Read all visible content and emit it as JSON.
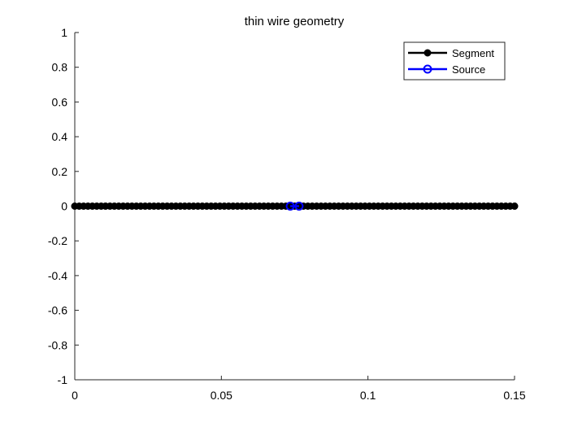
{
  "chart_data": {
    "type": "line",
    "title": "thin wire geometry",
    "xlabel": "",
    "ylabel": "",
    "xlim": [
      0,
      0.15
    ],
    "ylim": [
      -1,
      1
    ],
    "grid": false,
    "legend_position": "top-right",
    "x_ticks": [
      {
        "value": 0,
        "label": "0"
      },
      {
        "value": 0.05,
        "label": "0.05"
      },
      {
        "value": 0.1,
        "label": "0.1"
      },
      {
        "value": 0.15,
        "label": "0.15"
      }
    ],
    "y_ticks": [
      {
        "value": 1,
        "label": "1"
      },
      {
        "value": 0.8,
        "label": "0.8"
      },
      {
        "value": 0.6,
        "label": "0.6"
      },
      {
        "value": 0.4,
        "label": "0.4"
      },
      {
        "value": 0.2,
        "label": "0.2"
      },
      {
        "value": 0,
        "label": "0"
      },
      {
        "value": -0.2,
        "label": "-0.2"
      },
      {
        "value": -0.4,
        "label": "-0.4"
      },
      {
        "value": -0.6,
        "label": "-0.6"
      },
      {
        "value": -0.8,
        "label": "-0.8"
      },
      {
        "value": -1,
        "label": "-1"
      }
    ],
    "series": [
      {
        "name": "Segment",
        "color": "#000000",
        "marker": "filled-circle",
        "x_start": 0,
        "x_end": 0.15,
        "point_count": 101,
        "y": 0
      },
      {
        "name": "Source",
        "color": "#0000ff",
        "marker": "open-circle",
        "x": [
          0.0735,
          0.0765
        ],
        "y": [
          0,
          0
        ]
      }
    ]
  }
}
